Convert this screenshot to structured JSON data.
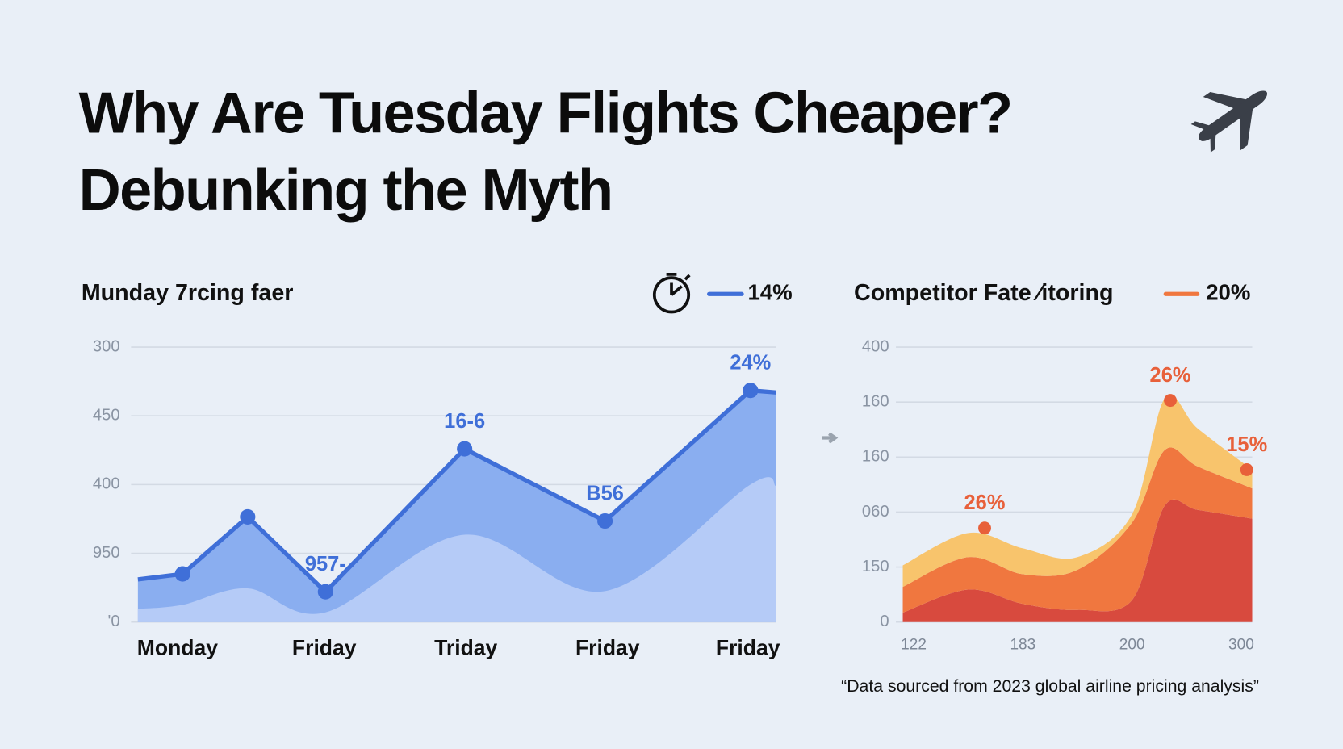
{
  "header": {
    "title_lines": [
      "Why Are Tuesday Flights Cheaper?",
      "Debunking the Myth"
    ]
  },
  "chart_data": [
    {
      "type": "area",
      "title": "Munday 7rcing faer",
      "x": [
        0,
        0.35,
        0.86,
        1.47,
        2.56,
        3.66,
        4.8,
        5
      ],
      "xlim": [
        0,
        5
      ],
      "xticks": [
        {
          "value": 0.31,
          "label": "Monday"
        },
        {
          "value": 1.46,
          "label": "Friday"
        },
        {
          "value": 2.57,
          "label": "Triday"
        },
        {
          "value": 3.68,
          "label": "Friday"
        },
        {
          "value": 4.78,
          "label": "Friday"
        }
      ],
      "ylim": [
        0,
        4
      ],
      "yticks": [
        {
          "value": 0,
          "label": "'0"
        },
        {
          "value": 1,
          "label": "950"
        },
        {
          "value": 2,
          "label": "400"
        },
        {
          "value": 3,
          "label": "450"
        },
        {
          "value": 4,
          "label": "300"
        }
      ],
      "grid": true,
      "series": [
        {
          "name": "14%",
          "color": "#3f6fd8",
          "area_color": "#8aaef0",
          "values": [
            0.62,
            0.7,
            1.53,
            0.44,
            2.52,
            1.47,
            3.37,
            3.34
          ],
          "markers": [
            false,
            true,
            true,
            true,
            true,
            true,
            true,
            false
          ],
          "point_labels": [
            null,
            null,
            null,
            "957-",
            "16-6",
            "B56",
            "24%",
            null
          ]
        },
        {
          "color": "#b5cbf7",
          "values": [
            0.19,
            0.25,
            0.49,
            0.14,
            1.27,
            0.45,
            2.0,
            1.98
          ]
        }
      ]
    },
    {
      "type": "stacked_area",
      "title": "Competitor Fate ⁄itoring",
      "x": [
        -0.1,
        0.5,
        1.0,
        1.5,
        2.0,
        2.3,
        2.6,
        3.1
      ],
      "xlim": [
        -0.1,
        3.1
      ],
      "xticks": [
        {
          "value": 0,
          "label": "122"
        },
        {
          "value": 1,
          "label": "183"
        },
        {
          "value": 2,
          "label": "200"
        },
        {
          "value": 3,
          "label": "300"
        }
      ],
      "ylim": [
        0,
        5
      ],
      "yticks": [
        {
          "value": 0,
          "label": "0"
        },
        {
          "value": 1,
          "label": "150"
        },
        {
          "value": 2,
          "label": "060"
        },
        {
          "value": 3,
          "label": "160"
        },
        {
          "value": 4,
          "label": "160"
        },
        {
          "value": 5,
          "label": "400"
        }
      ],
      "grid": true,
      "series": [
        {
          "color": "#d84a3e",
          "values": [
            0.17,
            0.59,
            0.33,
            0.22,
            0.4,
            2.12,
            2.04,
            1.88
          ]
        },
        {
          "name": "20%",
          "color": "#f0773f",
          "values": [
            0.47,
            0.59,
            0.54,
            0.73,
            1.41,
            1.01,
            0.79,
            0.55
          ]
        },
        {
          "color": "#f8c46c",
          "values": [
            0.39,
            0.44,
            0.47,
            0.23,
            0.15,
            0.94,
            0.69,
            0.34
          ]
        }
      ],
      "points": {
        "color": "#e8603a",
        "x": [
          0.65,
          2.35,
          3.05
        ],
        "values": [
          1.71,
          4.03,
          2.77
        ],
        "labels": [
          "26%",
          "26%",
          "15%"
        ]
      }
    }
  ],
  "footnote": "“Data sourced from 2023 global airline pricing analysis”"
}
